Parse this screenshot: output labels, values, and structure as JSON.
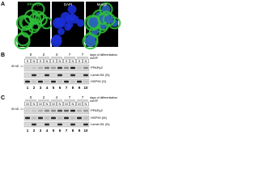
{
  "panel_a": {
    "label": "A",
    "images": [
      "PPARγ2",
      "DAPI",
      "Merge"
    ]
  },
  "panel_b": {
    "label": "B",
    "days": [
      "0",
      "2",
      "4",
      "7",
      "7"
    ],
    "days_label": "days of differentiation",
    "treatment_label": "siUSP",
    "fractions": [
      "S",
      "N",
      "S",
      "N",
      "S",
      "N",
      "S",
      "N",
      "S",
      "N"
    ],
    "blots": [
      "PPARγ2",
      "Lamin B1 (N)",
      "HSP90 (S)"
    ],
    "marker": "50 kD",
    "lanes": [
      "1",
      "2",
      "3",
      "4",
      "5",
      "6",
      "7",
      "8",
      "9",
      "10"
    ]
  },
  "panel_c": {
    "label": "C",
    "days": [
      "0",
      "2",
      "4",
      "7",
      "7"
    ],
    "days_label": "days of differentiation",
    "treatment_label": "siUSP",
    "fractions": [
      "M",
      "N",
      "M",
      "N",
      "M",
      "N",
      "M",
      "N",
      "M",
      "N"
    ],
    "blots": [
      "PPARγ2",
      "HSP90 (M)",
      "Lamin B1 (N)"
    ],
    "marker": "50 kD",
    "lanes": [
      "1",
      "2",
      "3",
      "4",
      "5",
      "6",
      "7",
      "8",
      "9",
      "10"
    ]
  }
}
